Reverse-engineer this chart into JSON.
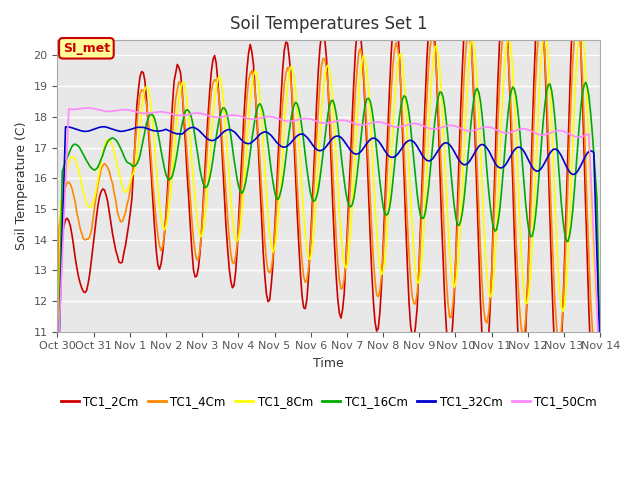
{
  "title": "Soil Temperatures Set 1",
  "xlabel": "Time",
  "ylabel": "Soil Temperature (C)",
  "ylim": [
    11.0,
    20.5
  ],
  "yticks": [
    11.0,
    12.0,
    13.0,
    14.0,
    15.0,
    16.0,
    17.0,
    18.0,
    19.0,
    20.0
  ],
  "background_color": "#ffffff",
  "plot_bg_color": "#e8e8e8",
  "grid_color": "#ffffff",
  "annotation_text": "SI_met",
  "annotation_bg": "#ffff99",
  "annotation_border": "#cc0000",
  "annotation_text_color": "#cc0000",
  "series_colors": {
    "TC1_2Cm": "#cc0000",
    "TC1_4Cm": "#ff8800",
    "TC1_8Cm": "#ffff00",
    "TC1_16Cm": "#00aa00",
    "TC1_32Cm": "#0000cc",
    "TC1_50Cm": "#ff88ff"
  },
  "x_tick_labels": [
    "Oct 30",
    "Oct 31",
    "Nov 1",
    "Nov 2",
    "Nov 3",
    "Nov 4",
    "Nov 5",
    "Nov 6",
    "Nov 7",
    "Nov 8",
    "Nov 9",
    "Nov 10",
    "Nov 11",
    "Nov 12",
    "Nov 13",
    "Nov 14"
  ],
  "n_points": 336
}
